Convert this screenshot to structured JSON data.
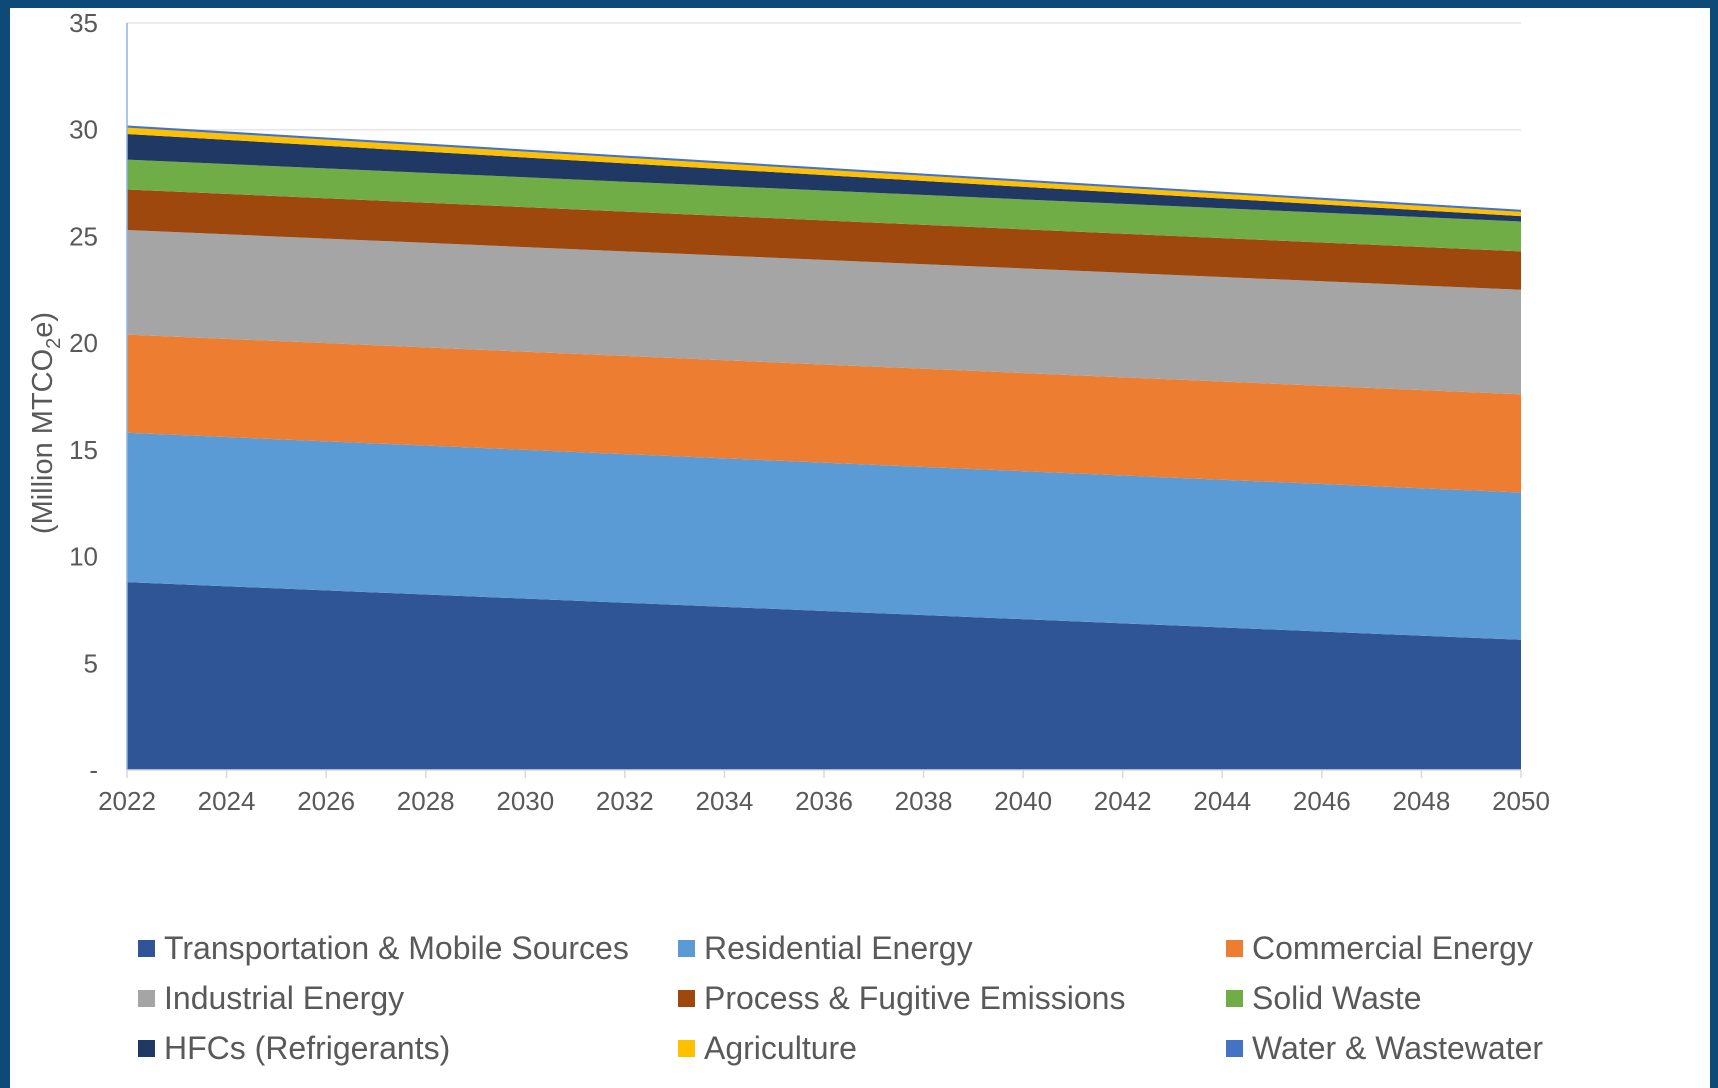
{
  "chart_data": {
    "type": "area",
    "stacked": true,
    "title": "",
    "xlabel": "",
    "ylabel": "(Million MTCO2e)",
    "ylabel_parts": [
      "(Million MTCO",
      "2",
      "e)"
    ],
    "xlim": [
      2022,
      2050
    ],
    "ylim": [
      0,
      35
    ],
    "x_ticks": [
      "2022",
      "2024",
      "2026",
      "2028",
      "2030",
      "2032",
      "2034",
      "2036",
      "2038",
      "2040",
      "2042",
      "2044",
      "2046",
      "2048",
      "2050"
    ],
    "y_ticks": [
      {
        "value": 0,
        "label": "-"
      },
      {
        "value": 5,
        "label": "5"
      },
      {
        "value": 10,
        "label": "10"
      },
      {
        "value": 15,
        "label": "15"
      },
      {
        "value": 20,
        "label": "20"
      },
      {
        "value": 25,
        "label": "25"
      },
      {
        "value": 30,
        "label": "30"
      },
      {
        "value": 35,
        "label": "35"
      }
    ],
    "grid": "horizontal",
    "legend_position": "bottom",
    "x": [
      2022,
      2050
    ],
    "series": [
      {
        "name": "Transportation & Mobile Sources",
        "color": "#2f5597",
        "values": [
          8.8,
          6.1
        ]
      },
      {
        "name": "Residential Energy",
        "color": "#5b9bd5",
        "values": [
          7.0,
          6.9
        ]
      },
      {
        "name": "Commercial Energy",
        "color": "#ed7d31",
        "values": [
          4.6,
          4.6
        ]
      },
      {
        "name": "Industrial Energy",
        "color": "#a5a5a5",
        "values": [
          4.9,
          4.9
        ]
      },
      {
        "name": "Process & Fugitive Emissions",
        "color": "#9e480e",
        "values": [
          1.9,
          1.8
        ]
      },
      {
        "name": "Solid Waste",
        "color": "#70ad47",
        "values": [
          1.4,
          1.4
        ]
      },
      {
        "name": "HFCs (Refrigerants)",
        "color": "#203864",
        "values": [
          1.2,
          0.25
        ]
      },
      {
        "name": "Agriculture",
        "color": "#ffc000",
        "values": [
          0.3,
          0.2
        ]
      },
      {
        "name": "Water & Wastewater",
        "color": "#4472c4",
        "values": [
          0.1,
          0.1
        ]
      }
    ]
  }
}
